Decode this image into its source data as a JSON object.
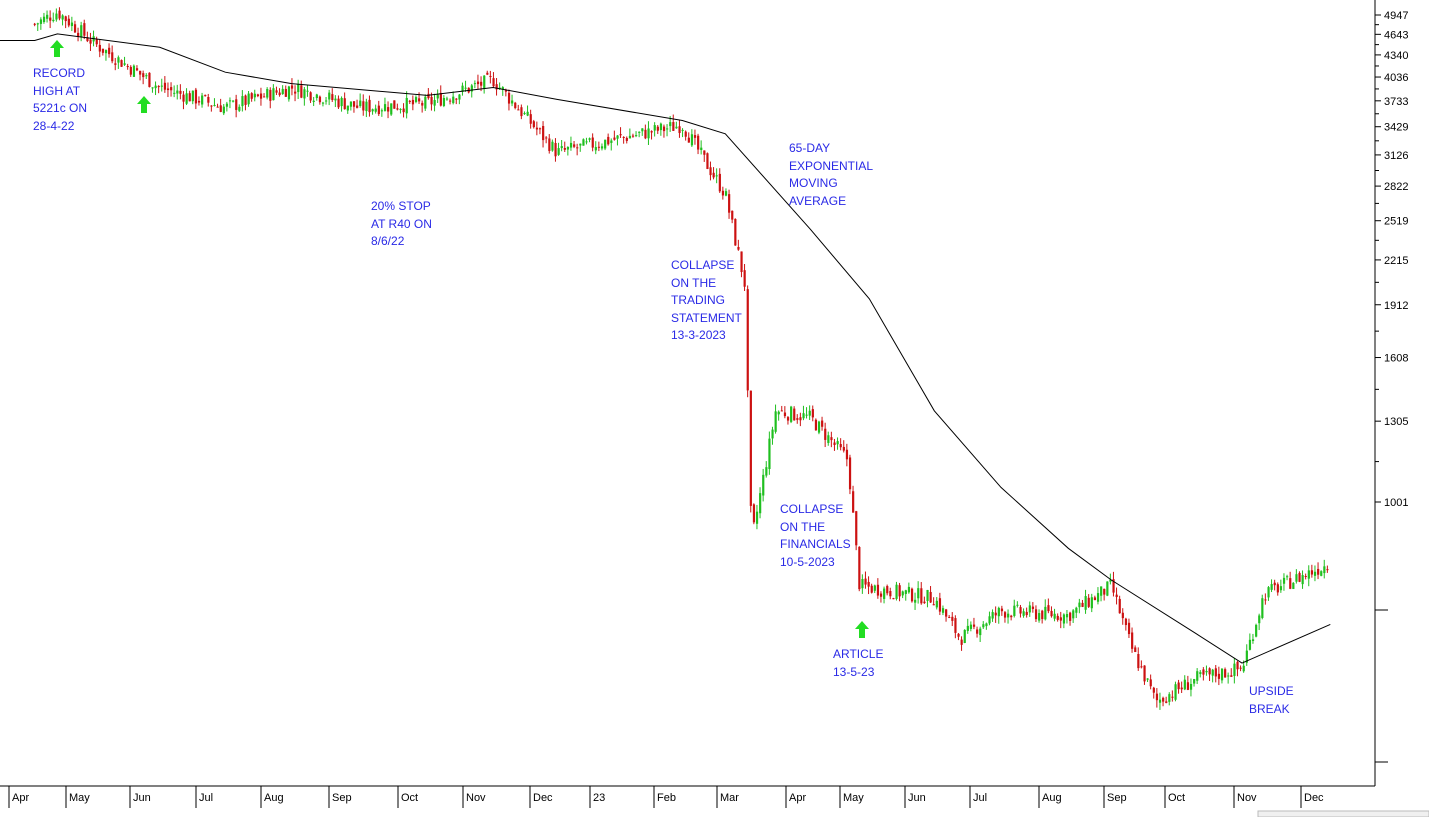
{
  "chart_data": {
    "type": "candlestick",
    "title": "",
    "xlabel": "",
    "ylabel": "",
    "y_scale": "log",
    "y_ticks": [
      4947,
      4643,
      4340,
      4036,
      3733,
      3429,
      3126,
      2822,
      2519,
      2215,
      1912,
      1608,
      1305,
      1001
    ],
    "x_ticks": [
      "Apr",
      "May",
      "Jun",
      "Jul",
      "Aug",
      "Sep",
      "Oct",
      "Nov",
      "Dec",
      "23",
      "Feb",
      "Mar",
      "Apr",
      "May",
      "Jun",
      "Jul",
      "Aug",
      "Sep",
      "Oct",
      "Nov",
      "Dec"
    ],
    "colors": {
      "up": "#1fbf1f",
      "down": "#cc1111",
      "ema": "#000000",
      "annotation": "#2a2ae6",
      "arrow": "#22dd22"
    },
    "price_path": [
      {
        "x": "Apr 2022",
        "y": 4800
      },
      {
        "x": "late Apr 2022",
        "y": 5000
      },
      {
        "x": "May 2022",
        "y": 4500
      },
      {
        "x": "Jun 2022",
        "y": 3900
      },
      {
        "x": "Jul 2022",
        "y": 3650
      },
      {
        "x": "Aug 2022",
        "y": 3900
      },
      {
        "x": "Sep 2022",
        "y": 3650
      },
      {
        "x": "Oct 2022",
        "y": 3700
      },
      {
        "x": "Nov 2022",
        "y": 4000
      },
      {
        "x": "Dec 2022",
        "y": 3150
      },
      {
        "x": "Jan 2023",
        "y": 3300
      },
      {
        "x": "Feb 2023",
        "y": 3450
      },
      {
        "x": "early Mar 2023",
        "y": 2750
      },
      {
        "x": "13 Mar 2023",
        "y": 2050
      },
      {
        "x": "mid Mar 2023",
        "y": 880
      },
      {
        "x": "late Mar 2023",
        "y": 1350
      },
      {
        "x": "Apr 2023",
        "y": 1320
      },
      {
        "x": "early May 2023",
        "y": 1150
      },
      {
        "x": "10 May 2023",
        "y": 760
      },
      {
        "x": "Jun 2023",
        "y": 730
      },
      {
        "x": "late Jun 2023",
        "y": 640
      },
      {
        "x": "Jul 2023",
        "y": 700
      },
      {
        "x": "Aug 2023",
        "y": 690
      },
      {
        "x": "early Sep 2023",
        "y": 760
      },
      {
        "x": "Sep 2023",
        "y": 620
      },
      {
        "x": "late Sep 2023",
        "y": 520
      },
      {
        "x": "Oct 2023",
        "y": 560
      },
      {
        "x": "early Nov 2023",
        "y": 580
      },
      {
        "x": "Nov 2023",
        "y": 740
      },
      {
        "x": "Dec 2023",
        "y": 820
      }
    ],
    "ema_65": [
      {
        "x": "Apr 2022",
        "y": 4550
      },
      {
        "x": "late Apr 2022",
        "y": 4650
      },
      {
        "x": "Jun 2022",
        "y": 4450
      },
      {
        "x": "Jul 2022",
        "y": 4100
      },
      {
        "x": "Aug 2022",
        "y": 3950
      },
      {
        "x": "Oct 2022",
        "y": 3800
      },
      {
        "x": "Nov 2022",
        "y": 3900
      },
      {
        "x": "Dec 2022",
        "y": 3750
      },
      {
        "x": "Feb 2023",
        "y": 3500
      },
      {
        "x": "early Mar 2023",
        "y": 3350
      },
      {
        "x": "Apr 2023",
        "y": 2450
      },
      {
        "x": "May 2023",
        "y": 1950
      },
      {
        "x": "Jun 2023",
        "y": 1350
      },
      {
        "x": "Jul 2023",
        "y": 1050
      },
      {
        "x": "Aug 2023",
        "y": 860
      },
      {
        "x": "early Sep 2023",
        "y": 775
      },
      {
        "x": "Oct 2023",
        "y": 650
      },
      {
        "x": "early Nov 2023",
        "y": 590
      },
      {
        "x": "Dec 2023",
        "y": 670
      }
    ],
    "annotations": [
      {
        "text": "RECORD\nHIGH AT\n5221c ON\n28-4-22"
      },
      {
        "text": "20% STOP\nAT R40 ON\n8/6/22"
      },
      {
        "text": "COLLAPSE\nON THE\nTRADING\nSTATEMENT\n13-3-2023"
      },
      {
        "text": "65-DAY\nEXPONENTIAL\nMOVING\nAVERAGE"
      },
      {
        "text": "COLLAPSE\nON THE\nFINANCIALS\n10-5-2023"
      },
      {
        "text": "ARTICLE\n13-5-23"
      },
      {
        "text": "UPSIDE\nBREAK"
      }
    ],
    "grid": false,
    "legend": "none"
  }
}
